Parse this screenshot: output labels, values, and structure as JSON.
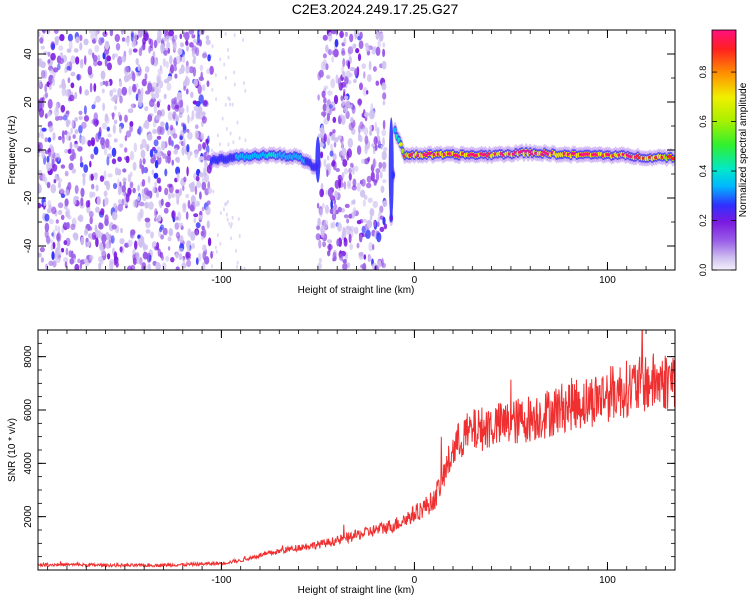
{
  "title": "C2E3.2024.249.17.25.G27",
  "colors": {
    "signal_line": "#f03030",
    "background": "#ffffff",
    "axis": "#000000",
    "colormap": [
      "#cfc0f0",
      "#9a60e8",
      "#7a1ae0",
      "#3030ff",
      "#00b8ff",
      "#00e8c8",
      "#30f030",
      "#a8f000",
      "#f0f000",
      "#ff9000",
      "#ff2020",
      "#ff1080"
    ]
  },
  "chart_data": [
    {
      "type": "heatmap",
      "xlabel": "Height of straight line (km)",
      "ylabel": "Frequency (Hz)",
      "xlim": [
        -195,
        135
      ],
      "ylim": [
        -50,
        50
      ],
      "xticks": [
        -100,
        0,
        100
      ],
      "yticks": [
        -40,
        -20,
        0,
        20,
        40
      ],
      "colorbar": {
        "label": "Normalized spectral amplitude",
        "range": [
          0.0,
          0.97
        ],
        "ticks": [
          0.0,
          0.2,
          0.4,
          0.6,
          0.8
        ]
      },
      "noise_regions_km": [
        [
          -195,
          -105
        ],
        [
          -50,
          -15
        ]
      ],
      "signal_track": {
        "x": [
          -105,
          -90,
          -75,
          -60,
          -50,
          -45,
          -40,
          -30,
          -20,
          -15,
          -12,
          -10,
          -5,
          0,
          20,
          40,
          60,
          80,
          100,
          120,
          135
        ],
        "frequency": [
          -4,
          -3,
          -2,
          -3,
          -8,
          null,
          null,
          null,
          null,
          null,
          -28,
          8,
          -2,
          -2,
          -2,
          -2,
          -1,
          -2,
          -2,
          -3,
          -3
        ],
        "amplitude": [
          0.35,
          0.45,
          0.55,
          0.5,
          0.3,
          null,
          null,
          null,
          null,
          null,
          0.3,
          0.5,
          0.85,
          0.9,
          0.9,
          0.92,
          0.9,
          0.9,
          0.92,
          0.88,
          0.85
        ]
      }
    },
    {
      "type": "line",
      "xlabel": "Height of straight line (km)",
      "ylabel": "SNR (10 * v/v)",
      "xlim": [
        -195,
        135
      ],
      "ylim": [
        0,
        9000
      ],
      "xticks": [
        -100,
        0,
        100
      ],
      "yticks": [
        2000,
        4000,
        6000,
        8000
      ],
      "series": [
        {
          "x": [
            -195,
            -180,
            -160,
            -140,
            -120,
            -100,
            -90,
            -80,
            -70,
            -60,
            -50,
            -40,
            -30,
            -20,
            -10,
            0,
            10,
            15,
            20,
            25,
            30,
            35,
            40,
            50,
            60,
            70,
            80,
            90,
            100,
            110,
            120,
            130,
            135
          ],
          "values": [
            200,
            200,
            180,
            170,
            200,
            250,
            350,
            550,
            700,
            850,
            950,
            1100,
            1300,
            1500,
            1700,
            2100,
            2600,
            3500,
            4500,
            5000,
            5200,
            5300,
            5400,
            5500,
            5700,
            5900,
            6200,
            6300,
            6600,
            6800,
            7000,
            7100,
            7200
          ]
        }
      ]
    }
  ]
}
